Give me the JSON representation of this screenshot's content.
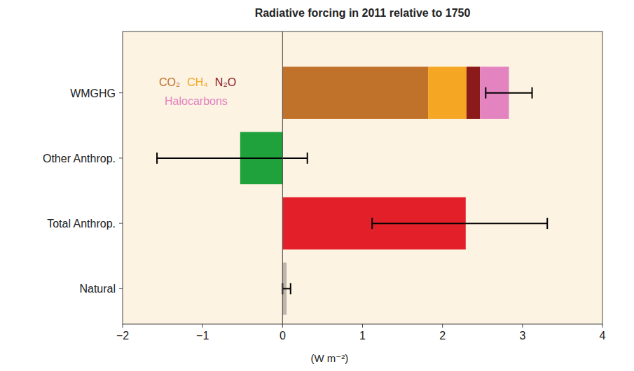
{
  "chart_data": {
    "type": "bar",
    "orientation": "horizontal",
    "stacked": true,
    "title": "Radiative forcing in 2011 relative to 1750",
    "x_label": "(W m⁻²)",
    "categories": [
      "WMGHG",
      "Other Anthrop.",
      "Total Anthrop.",
      "Natural"
    ],
    "series": [
      {
        "name": "CO₂",
        "color": "#c0722a",
        "values": [
          1.82,
          null,
          null,
          null
        ]
      },
      {
        "name": "CH₄",
        "color": "#f5a623",
        "values": [
          0.48,
          null,
          null,
          null
        ]
      },
      {
        "name": "N₂O",
        "color": "#8b1a1a",
        "values": [
          0.17,
          null,
          null,
          null
        ]
      },
      {
        "name": "Halocarbons",
        "color": "#e383c0",
        "values": [
          0.36,
          null,
          null,
          null
        ]
      }
    ],
    "values": [
      null,
      -0.53,
      2.29,
      0.05
    ],
    "colors": [
      null,
      "#1fa23c",
      "#e3202a",
      "#bdb5ab"
    ],
    "error_low": [
      2.54,
      -1.57,
      1.12,
      0.0
    ],
    "error_high": [
      3.12,
      0.31,
      3.31,
      0.1
    ],
    "xlim": [
      -2,
      4
    ],
    "xticks": [
      -2,
      -1,
      0,
      1,
      2,
      3,
      4
    ],
    "grid": false
  }
}
